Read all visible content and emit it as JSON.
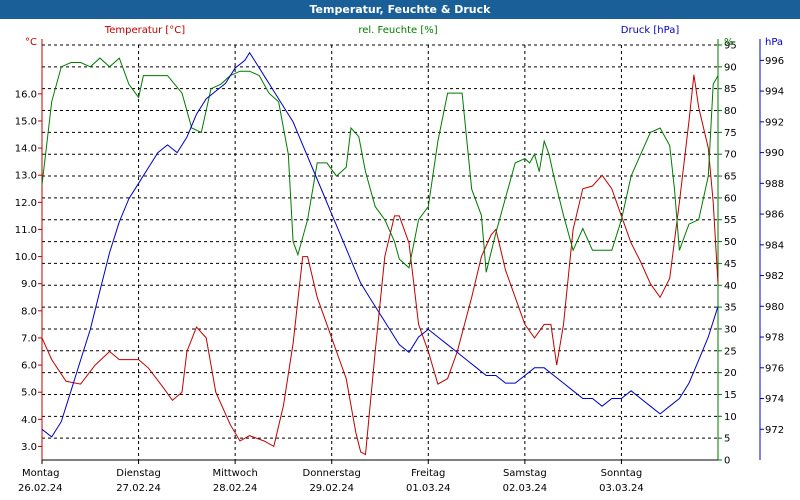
{
  "window": {
    "title": "Temperatur, Feuchte & Druck"
  },
  "chart_data": {
    "type": "line",
    "grid": true,
    "legend": [
      {
        "label": "Temperatur [°C]",
        "color": "#c00000"
      },
      {
        "label": "rel. Feuchte [%]",
        "color": "#007a00"
      },
      {
        "label": "Druck [hPa]",
        "color": "#0000c0"
      }
    ],
    "axes": {
      "temperature": {
        "unit": "°C",
        "range": [
          2.5,
          17.8
        ],
        "ticks": [
          "3.0",
          "4.0",
          "5.0",
          "6.0",
          "7.0",
          "8.0",
          "9.0",
          "10.0",
          "11.0",
          "12.0",
          "13.0",
          "14.0",
          "15.0",
          "16.0"
        ],
        "color": "#c00000"
      },
      "humidity": {
        "unit": "%",
        "range": [
          0,
          95
        ],
        "ticks": [
          "0",
          "5",
          "10",
          "15",
          "20",
          "25",
          "30",
          "35",
          "40",
          "45",
          "50",
          "55",
          "60",
          "65",
          "70",
          "75",
          "80",
          "85",
          "90",
          "95"
        ],
        "color": "#007a00"
      },
      "pressure": {
        "unit": "hPa",
        "range": [
          970,
          997
        ],
        "ticks": [
          "972",
          "974",
          "976",
          "978",
          "980",
          "982",
          "984",
          "986",
          "988",
          "990",
          "992",
          "994",
          "996"
        ],
        "color": "#0000c0"
      }
    },
    "x_range": [
      0,
      7
    ],
    "days": [
      {
        "name": "Montag",
        "date": "26.02.24"
      },
      {
        "name": "Dienstag",
        "date": "27.02.24"
      },
      {
        "name": "Mittwoch",
        "date": "28.02.24"
      },
      {
        "name": "Donnerstag",
        "date": "29.02.24"
      },
      {
        "name": "Freitag",
        "date": "01.03.24"
      },
      {
        "name": "Samstag",
        "date": "02.03.24"
      },
      {
        "name": "Sonntag",
        "date": "03.03.24"
      }
    ],
    "series": [
      {
        "name": "Temperatur [°C]",
        "axis": "temperature",
        "color": "#c00000",
        "points": [
          [
            0,
            7.0
          ],
          [
            0.1,
            6.2
          ],
          [
            0.25,
            5.4
          ],
          [
            0.4,
            5.3
          ],
          [
            0.55,
            6.0
          ],
          [
            0.7,
            6.5
          ],
          [
            0.8,
            6.2
          ],
          [
            1.0,
            6.2
          ],
          [
            1.1,
            5.9
          ],
          [
            1.25,
            5.2
          ],
          [
            1.35,
            4.7
          ],
          [
            1.45,
            5.0
          ],
          [
            1.5,
            6.5
          ],
          [
            1.6,
            7.4
          ],
          [
            1.7,
            7.0
          ],
          [
            1.8,
            5.0
          ],
          [
            1.95,
            3.8
          ],
          [
            2.05,
            3.2
          ],
          [
            2.15,
            3.4
          ],
          [
            2.3,
            3.2
          ],
          [
            2.4,
            3.0
          ],
          [
            2.5,
            4.5
          ],
          [
            2.6,
            6.8
          ],
          [
            2.7,
            10.0
          ],
          [
            2.75,
            10.0
          ],
          [
            2.85,
            8.5
          ],
          [
            2.95,
            7.5
          ],
          [
            3.05,
            6.5
          ],
          [
            3.15,
            5.5
          ],
          [
            3.25,
            3.5
          ],
          [
            3.3,
            2.8
          ],
          [
            3.35,
            2.7
          ],
          [
            3.45,
            6.5
          ],
          [
            3.55,
            10.0
          ],
          [
            3.65,
            11.5
          ],
          [
            3.7,
            11.5
          ],
          [
            3.8,
            10.5
          ],
          [
            3.9,
            7.5
          ],
          [
            4.0,
            6.5
          ],
          [
            4.1,
            5.3
          ],
          [
            4.2,
            5.5
          ],
          [
            4.3,
            6.5
          ],
          [
            4.45,
            8.5
          ],
          [
            4.55,
            10.0
          ],
          [
            4.65,
            10.8
          ],
          [
            4.7,
            11.0
          ],
          [
            4.8,
            9.5
          ],
          [
            4.9,
            8.5
          ],
          [
            5.0,
            7.5
          ],
          [
            5.1,
            7.0
          ],
          [
            5.2,
            7.5
          ],
          [
            5.27,
            7.5
          ],
          [
            5.33,
            6.0
          ],
          [
            5.4,
            7.5
          ],
          [
            5.5,
            11.0
          ],
          [
            5.6,
            12.5
          ],
          [
            5.7,
            12.6
          ],
          [
            5.8,
            13.0
          ],
          [
            5.9,
            12.5
          ],
          [
            6.0,
            11.5
          ],
          [
            6.1,
            10.5
          ],
          [
            6.2,
            9.8
          ],
          [
            6.3,
            9.0
          ],
          [
            6.4,
            8.5
          ],
          [
            6.5,
            9.2
          ],
          [
            6.6,
            12.0
          ],
          [
            6.7,
            15.0
          ],
          [
            6.75,
            16.7
          ],
          [
            6.8,
            15.5
          ],
          [
            6.9,
            14.0
          ],
          [
            6.95,
            12.0
          ],
          [
            7.0,
            9.0
          ]
        ]
      },
      {
        "name": "rel. Feuchte [%]",
        "axis": "humidity",
        "color": "#007a00",
        "points": [
          [
            0,
            63
          ],
          [
            0.1,
            82
          ],
          [
            0.2,
            90
          ],
          [
            0.3,
            91
          ],
          [
            0.4,
            91
          ],
          [
            0.5,
            90
          ],
          [
            0.6,
            92
          ],
          [
            0.7,
            90
          ],
          [
            0.8,
            92
          ],
          [
            0.9,
            86
          ],
          [
            1.0,
            83
          ],
          [
            1.05,
            88
          ],
          [
            1.15,
            88
          ],
          [
            1.3,
            88
          ],
          [
            1.45,
            84
          ],
          [
            1.55,
            76
          ],
          [
            1.65,
            75
          ],
          [
            1.75,
            85
          ],
          [
            1.85,
            86
          ],
          [
            1.95,
            88
          ],
          [
            2.05,
            89
          ],
          [
            2.15,
            89
          ],
          [
            2.25,
            88
          ],
          [
            2.35,
            84
          ],
          [
            2.45,
            82
          ],
          [
            2.55,
            70
          ],
          [
            2.6,
            50
          ],
          [
            2.65,
            47
          ],
          [
            2.75,
            55
          ],
          [
            2.85,
            68
          ],
          [
            2.95,
            68
          ],
          [
            3.05,
            65
          ],
          [
            3.15,
            67
          ],
          [
            3.2,
            76
          ],
          [
            3.28,
            74
          ],
          [
            3.35,
            66
          ],
          [
            3.45,
            58
          ],
          [
            3.55,
            55
          ],
          [
            3.65,
            50
          ],
          [
            3.7,
            46
          ],
          [
            3.8,
            44
          ],
          [
            3.9,
            55
          ],
          [
            4.0,
            58
          ],
          [
            4.1,
            73
          ],
          [
            4.2,
            84
          ],
          [
            4.3,
            84
          ],
          [
            4.35,
            84
          ],
          [
            4.45,
            62
          ],
          [
            4.55,
            56
          ],
          [
            4.6,
            43
          ],
          [
            4.7,
            52
          ],
          [
            4.8,
            60
          ],
          [
            4.9,
            68
          ],
          [
            5.0,
            69
          ],
          [
            5.05,
            68
          ],
          [
            5.1,
            70
          ],
          [
            5.15,
            66
          ],
          [
            5.2,
            73
          ],
          [
            5.25,
            70
          ],
          [
            5.3,
            65
          ],
          [
            5.4,
            56
          ],
          [
            5.5,
            48
          ],
          [
            5.6,
            53
          ],
          [
            5.7,
            48
          ],
          [
            5.8,
            48
          ],
          [
            5.9,
            48
          ],
          [
            6.0,
            55
          ],
          [
            6.1,
            65
          ],
          [
            6.2,
            70
          ],
          [
            6.3,
            75
          ],
          [
            6.4,
            76
          ],
          [
            6.5,
            72
          ],
          [
            6.55,
            62
          ],
          [
            6.6,
            48
          ],
          [
            6.7,
            54
          ],
          [
            6.8,
            55
          ],
          [
            6.9,
            65
          ],
          [
            6.95,
            86
          ],
          [
            7.0,
            88
          ]
        ]
      },
      {
        "name": "Druck [hPa]",
        "axis": "pressure",
        "color": "#0000c0",
        "points": [
          [
            0,
            972.0
          ],
          [
            0.1,
            971.5
          ],
          [
            0.2,
            972.5
          ],
          [
            0.3,
            974.5
          ],
          [
            0.4,
            976.5
          ],
          [
            0.5,
            978.5
          ],
          [
            0.6,
            981.0
          ],
          [
            0.7,
            983.5
          ],
          [
            0.8,
            985.5
          ],
          [
            0.9,
            987.0
          ],
          [
            1.0,
            988.0
          ],
          [
            1.1,
            989.0
          ],
          [
            1.2,
            990.0
          ],
          [
            1.3,
            990.5
          ],
          [
            1.4,
            990.0
          ],
          [
            1.5,
            991.0
          ],
          [
            1.6,
            992.5
          ],
          [
            1.7,
            993.5
          ],
          [
            1.8,
            994.0
          ],
          [
            1.9,
            994.5
          ],
          [
            2.0,
            995.5
          ],
          [
            2.1,
            996.0
          ],
          [
            2.15,
            996.5
          ],
          [
            2.2,
            996.0
          ],
          [
            2.3,
            995.0
          ],
          [
            2.4,
            994.0
          ],
          [
            2.5,
            993.0
          ],
          [
            2.6,
            992.0
          ],
          [
            2.7,
            990.5
          ],
          [
            2.8,
            989.0
          ],
          [
            2.9,
            987.5
          ],
          [
            3.0,
            986.0
          ],
          [
            3.1,
            984.5
          ],
          [
            3.2,
            983.0
          ],
          [
            3.3,
            981.5
          ],
          [
            3.4,
            980.5
          ],
          [
            3.5,
            979.5
          ],
          [
            3.6,
            978.5
          ],
          [
            3.7,
            977.5
          ],
          [
            3.8,
            977.0
          ],
          [
            3.85,
            977.5
          ],
          [
            3.9,
            978.0
          ],
          [
            4.0,
            978.5
          ],
          [
            4.1,
            978.0
          ],
          [
            4.2,
            977.5
          ],
          [
            4.3,
            977.0
          ],
          [
            4.4,
            976.5
          ],
          [
            4.5,
            976.0
          ],
          [
            4.6,
            975.5
          ],
          [
            4.7,
            975.5
          ],
          [
            4.8,
            975.0
          ],
          [
            4.9,
            975.0
          ],
          [
            5.0,
            975.5
          ],
          [
            5.1,
            976.0
          ],
          [
            5.2,
            976.0
          ],
          [
            5.3,
            975.5
          ],
          [
            5.4,
            975.0
          ],
          [
            5.5,
            974.5
          ],
          [
            5.6,
            974.0
          ],
          [
            5.7,
            974.0
          ],
          [
            5.8,
            973.5
          ],
          [
            5.9,
            974.0
          ],
          [
            6.0,
            974.0
          ],
          [
            6.1,
            974.5
          ],
          [
            6.2,
            974.0
          ],
          [
            6.3,
            973.5
          ],
          [
            6.4,
            973.0
          ],
          [
            6.5,
            973.5
          ],
          [
            6.6,
            974.0
          ],
          [
            6.7,
            975.0
          ],
          [
            6.8,
            976.5
          ],
          [
            6.9,
            978.0
          ],
          [
            7.0,
            980.0
          ]
        ]
      }
    ]
  }
}
